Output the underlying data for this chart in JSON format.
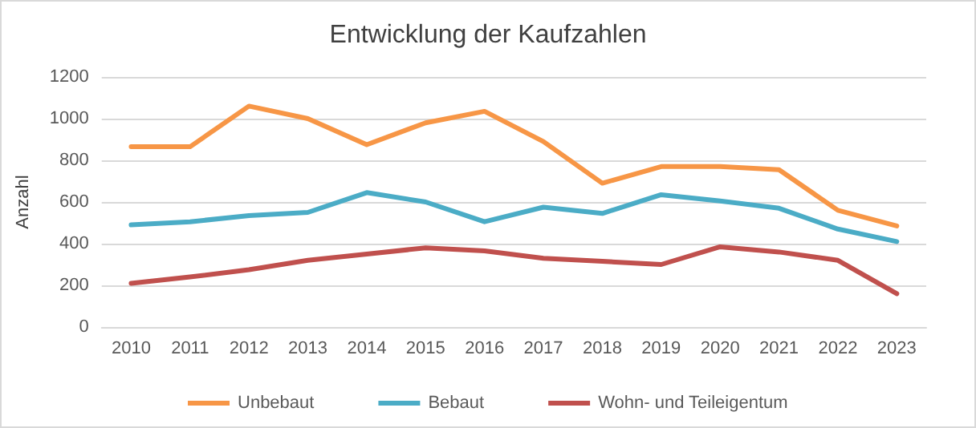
{
  "chart_data": {
    "type": "line",
    "title": "Entwicklung der Kaufzahlen",
    "ylabel": "Anzahl",
    "categories": [
      "2010",
      "2011",
      "2012",
      "2013",
      "2014",
      "2015",
      "2016",
      "2017",
      "2018",
      "2019",
      "2020",
      "2021",
      "2022",
      "2023"
    ],
    "series": [
      {
        "name": "Unbebaut",
        "color": "#f79646",
        "values": [
          865,
          865,
          1060,
          1000,
          875,
          980,
          1035,
          890,
          690,
          770,
          770,
          755,
          560,
          485
        ]
      },
      {
        "name": "Bebaut",
        "color": "#4bacc6",
        "values": [
          490,
          505,
          535,
          550,
          645,
          600,
          505,
          575,
          545,
          635,
          605,
          570,
          470,
          410
        ]
      },
      {
        "name": "Wohn- und Teileigentum",
        "color": "#c0504d",
        "values": [
          210,
          240,
          275,
          320,
          350,
          380,
          365,
          330,
          315,
          300,
          385,
          360,
          320,
          160
        ]
      }
    ],
    "ylim": [
      0,
      1200
    ],
    "yticks": [
      0,
      200,
      400,
      600,
      800,
      1000,
      1200
    ],
    "grid": "y",
    "legend": "bottom",
    "marker": "none",
    "line_style": "solid"
  }
}
